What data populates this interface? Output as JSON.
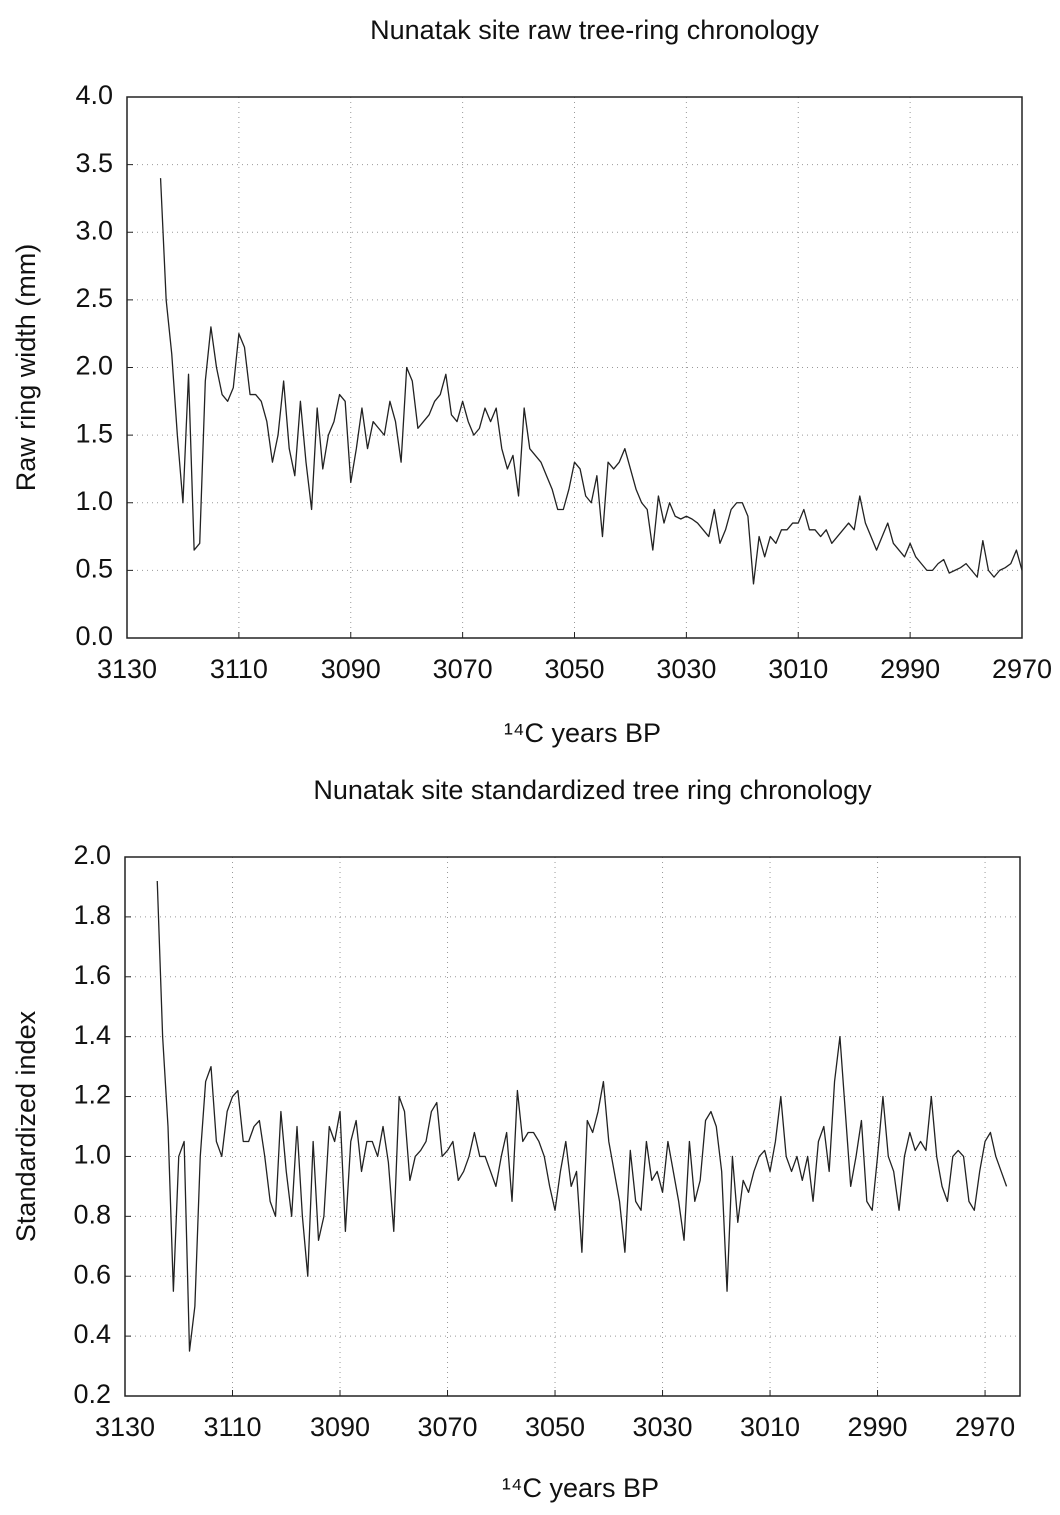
{
  "chart_data": [
    {
      "type": "line",
      "title": "Nunatak site raw tree-ring chronology",
      "xlabel": "¹⁴C years BP",
      "ylabel": "Raw ring width (mm)",
      "xlim": [
        3130,
        2970
      ],
      "xticks": [
        3130,
        3110,
        3090,
        3070,
        3050,
        3030,
        3010,
        2990,
        2970
      ],
      "ylim": [
        0,
        4
      ],
      "yticks": [
        {
          "value": 0,
          "label": "0.0"
        },
        {
          "value": 0.5,
          "label": "0.5"
        },
        {
          "value": 1,
          "label": "1.0"
        },
        {
          "value": 1.5,
          "label": "1.5"
        },
        {
          "value": 2,
          "label": "2.0"
        },
        {
          "value": 2.5,
          "label": "2.5"
        },
        {
          "value": 3,
          "label": "3.0"
        },
        {
          "value": 3.5,
          "label": "3.5"
        },
        {
          "value": 4,
          "label": "4.0"
        }
      ],
      "grid": true,
      "color": "#222222",
      "x": [
        3124,
        3123,
        3122,
        3121,
        3120,
        3119,
        3118,
        3117,
        3116,
        3115,
        3114,
        3113,
        3112,
        3111,
        3110,
        3109,
        3108,
        3107,
        3106,
        3105,
        3104,
        3103,
        3102,
        3101,
        3100,
        3099,
        3098,
        3097,
        3096,
        3095,
        3094,
        3093,
        3092,
        3091,
        3090,
        3089,
        3088,
        3087,
        3086,
        3085,
        3084,
        3083,
        3082,
        3081,
        3080,
        3079,
        3078,
        3077,
        3076,
        3075,
        3074,
        3073,
        3072,
        3071,
        3070,
        3069,
        3068,
        3067,
        3066,
        3065,
        3064,
        3063,
        3062,
        3061,
        3060,
        3059,
        3058,
        3057,
        3056,
        3055,
        3054,
        3053,
        3052,
        3051,
        3050,
        3049,
        3048,
        3047,
        3046,
        3045,
        3044,
        3043,
        3042,
        3041,
        3040,
        3039,
        3038,
        3037,
        3036,
        3035,
        3034,
        3033,
        3032,
        3031,
        3030,
        3029,
        3028,
        3027,
        3026,
        3025,
        3024,
        3023,
        3022,
        3021,
        3020,
        3019,
        3018,
        3017,
        3016,
        3015,
        3014,
        3013,
        3012,
        3011,
        3010,
        3009,
        3008,
        3007,
        3006,
        3005,
        3004,
        3003,
        3002,
        3001,
        3000,
        2999,
        2998,
        2997,
        2996,
        2995,
        2994,
        2993,
        2992,
        2991,
        2990,
        2989,
        2988,
        2987,
        2986,
        2985,
        2984,
        2983,
        2982,
        2981,
        2980,
        2979,
        2978,
        2977,
        2976,
        2975,
        2974,
        2973,
        2972,
        2971,
        2970
      ],
      "values": [
        3.4,
        2.5,
        2.1,
        1.5,
        1.0,
        1.95,
        0.65,
        0.7,
        1.9,
        2.3,
        2.0,
        1.8,
        1.75,
        1.85,
        2.25,
        2.15,
        1.8,
        1.8,
        1.75,
        1.6,
        1.3,
        1.5,
        1.9,
        1.4,
        1.2,
        1.75,
        1.3,
        0.95,
        1.7,
        1.25,
        1.5,
        1.6,
        1.8,
        1.75,
        1.15,
        1.4,
        1.7,
        1.4,
        1.6,
        1.55,
        1.5,
        1.75,
        1.6,
        1.3,
        2.0,
        1.9,
        1.55,
        1.6,
        1.65,
        1.75,
        1.8,
        1.95,
        1.65,
        1.6,
        1.75,
        1.6,
        1.5,
        1.55,
        1.7,
        1.6,
        1.7,
        1.4,
        1.25,
        1.35,
        1.05,
        1.7,
        1.4,
        1.35,
        1.3,
        1.2,
        1.1,
        0.95,
        0.95,
        1.1,
        1.3,
        1.25,
        1.05,
        1.0,
        1.2,
        0.75,
        1.3,
        1.25,
        1.3,
        1.4,
        1.25,
        1.1,
        1.0,
        0.95,
        0.65,
        1.05,
        0.85,
        1.0,
        0.9,
        0.88,
        0.9,
        0.88,
        0.85,
        0.8,
        0.75,
        0.95,
        0.7,
        0.8,
        0.95,
        1.0,
        1.0,
        0.9,
        0.4,
        0.75,
        0.6,
        0.75,
        0.7,
        0.8,
        0.8,
        0.85,
        0.85,
        0.95,
        0.8,
        0.8,
        0.75,
        0.8,
        0.7,
        0.75,
        0.8,
        0.85,
        0.8,
        1.05,
        0.85,
        0.75,
        0.65,
        0.75,
        0.85,
        0.7,
        0.65,
        0.6,
        0.7,
        0.6,
        0.55,
        0.5,
        0.5,
        0.55,
        0.58,
        0.48,
        0.5,
        0.52,
        0.55,
        0.5,
        0.45,
        0.72,
        0.5,
        0.45,
        0.5,
        0.52,
        0.55,
        0.65,
        0.5
      ]
    },
    {
      "type": "line",
      "title": "Nunatak site standardized tree ring chronology",
      "xlabel": "¹⁴C years BP",
      "ylabel": "Standardized index",
      "xlim": [
        3130,
        2963.5
      ],
      "xticks": [
        3130,
        3110,
        3090,
        3070,
        3050,
        3030,
        3010,
        2990,
        2970
      ],
      "ylim": [
        0.2,
        2
      ],
      "yticks": [
        0.2,
        0.4,
        0.6,
        0.8,
        {
          "value": 1,
          "label": "1.0"
        },
        1.2,
        1.4,
        1.6,
        1.8,
        {
          "value": 2,
          "label": "2.0"
        }
      ],
      "grid": true,
      "color": "#222222",
      "x": [
        3124,
        3123,
        3122,
        3121,
        3120,
        3119,
        3118,
        3117,
        3116,
        3115,
        3114,
        3113,
        3112,
        3111,
        3110,
        3109,
        3108,
        3107,
        3106,
        3105,
        3104,
        3103,
        3102,
        3101,
        3100,
        3099,
        3098,
        3097,
        3096,
        3095,
        3094,
        3093,
        3092,
        3091,
        3090,
        3089,
        3088,
        3087,
        3086,
        3085,
        3084,
        3083,
        3082,
        3081,
        3080,
        3079,
        3078,
        3077,
        3076,
        3075,
        3074,
        3073,
        3072,
        3071,
        3070,
        3069,
        3068,
        3067,
        3066,
        3065,
        3064,
        3063,
        3062,
        3061,
        3060,
        3059,
        3058,
        3057,
        3056,
        3055,
        3054,
        3053,
        3052,
        3051,
        3050,
        3049,
        3048,
        3047,
        3046,
        3045,
        3044,
        3043,
        3042,
        3041,
        3040,
        3039,
        3038,
        3037,
        3036,
        3035,
        3034,
        3033,
        3032,
        3031,
        3030,
        3029,
        3028,
        3027,
        3026,
        3025,
        3024,
        3023,
        3022,
        3021,
        3020,
        3019,
        3018,
        3017,
        3016,
        3015,
        3014,
        3013,
        3012,
        3011,
        3010,
        3009,
        3008,
        3007,
        3006,
        3005,
        3004,
        3003,
        3002,
        3001,
        3000,
        2999,
        2998,
        2997,
        2996,
        2995,
        2994,
        2993,
        2992,
        2991,
        2990,
        2989,
        2988,
        2987,
        2986,
        2985,
        2984,
        2983,
        2982,
        2981,
        2980,
        2979,
        2978,
        2977,
        2976,
        2975,
        2974,
        2973,
        2972,
        2971,
        2970,
        2969,
        2968,
        2967,
        2966
      ],
      "values": [
        1.92,
        1.4,
        1.1,
        0.55,
        1.0,
        1.05,
        0.35,
        0.5,
        1.0,
        1.25,
        1.3,
        1.05,
        1.0,
        1.15,
        1.2,
        1.22,
        1.05,
        1.05,
        1.1,
        1.12,
        1.0,
        0.85,
        0.8,
        1.15,
        0.95,
        0.8,
        1.1,
        0.8,
        0.6,
        1.05,
        0.72,
        0.8,
        1.1,
        1.05,
        1.15,
        0.75,
        1.05,
        1.12,
        0.95,
        1.05,
        1.05,
        1.0,
        1.1,
        0.98,
        0.75,
        1.2,
        1.15,
        0.92,
        1.0,
        1.02,
        1.05,
        1.15,
        1.18,
        1.0,
        1.02,
        1.05,
        0.92,
        0.95,
        1.0,
        1.08,
        1.0,
        1.0,
        0.95,
        0.9,
        1.0,
        1.08,
        0.85,
        1.22,
        1.05,
        1.08,
        1.08,
        1.05,
        1.0,
        0.9,
        0.82,
        0.95,
        1.05,
        0.9,
        0.95,
        0.68,
        1.12,
        1.08,
        1.15,
        1.25,
        1.05,
        0.95,
        0.85,
        0.68,
        1.02,
        0.85,
        0.82,
        1.05,
        0.92,
        0.95,
        0.88,
        1.05,
        0.95,
        0.85,
        0.72,
        1.05,
        0.85,
        0.92,
        1.12,
        1.15,
        1.1,
        0.95,
        0.55,
        1.0,
        0.78,
        0.92,
        0.88,
        0.95,
        1.0,
        1.02,
        0.95,
        1.05,
        1.2,
        1.0,
        0.95,
        1.0,
        0.92,
        1.0,
        0.85,
        1.05,
        1.1,
        0.95,
        1.25,
        1.4,
        1.15,
        0.9,
        1.0,
        1.12,
        0.85,
        0.82,
        1.0,
        1.2,
        1.0,
        0.95,
        0.82,
        1.0,
        1.08,
        1.02,
        1.05,
        1.02,
        1.2,
        1.0,
        0.9,
        0.85,
        1.0,
        1.02,
        1.0,
        0.85,
        0.82,
        0.95,
        1.05,
        1.08,
        1.0,
        0.95,
        0.9
      ]
    }
  ]
}
